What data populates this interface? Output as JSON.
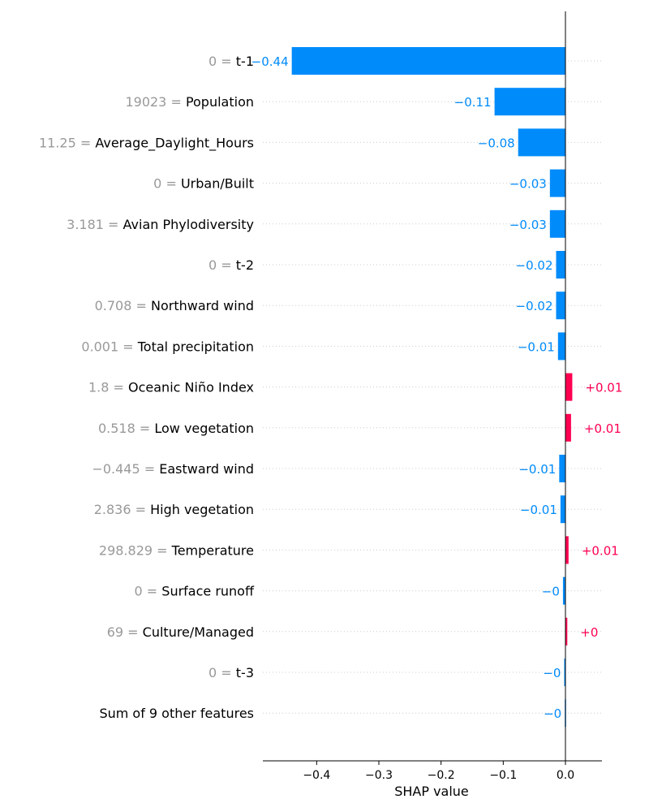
{
  "chart_data": {
    "type": "bar",
    "subtype": "shap-waterfall-bar",
    "xlabel": "SHAP value",
    "xlim": [
      -0.49,
      0.055
    ],
    "xticks": [
      {
        "value": -0.4,
        "label": "−0.4"
      },
      {
        "value": -0.3,
        "label": "−0.3"
      },
      {
        "value": -0.2,
        "label": "−0.2"
      },
      {
        "value": -0.1,
        "label": "−0.1"
      },
      {
        "value": 0.0,
        "label": "0.0"
      }
    ],
    "grid": "horizontal dotted lines per row",
    "colors": {
      "negative": "#008bfb",
      "positive": "#ff0051",
      "feature_value": "#999999",
      "feature_name": "#000000",
      "axis": "#000000",
      "gridline": "#cccccc"
    },
    "features": [
      {
        "value_text": "0",
        "name": "t-1",
        "shap": -0.44,
        "label": "−0.44"
      },
      {
        "value_text": "19023",
        "name": "Population",
        "shap": -0.114,
        "label": "−0.11"
      },
      {
        "value_text": "11.25",
        "name": "Average_Daylight_Hours",
        "shap": -0.076,
        "label": "−0.08"
      },
      {
        "value_text": "0",
        "name": "Urban/Built",
        "shap": -0.025,
        "label": "−0.03"
      },
      {
        "value_text": "3.181",
        "name": "Avian Phylodiversity",
        "shap": -0.025,
        "label": "−0.03"
      },
      {
        "value_text": "0",
        "name": "t-2",
        "shap": -0.015,
        "label": "−0.02"
      },
      {
        "value_text": "0.708",
        "name": "Northward wind",
        "shap": -0.015,
        "label": "−0.02"
      },
      {
        "value_text": "0.001",
        "name": "Total precipitation",
        "shap": -0.012,
        "label": "−0.01"
      },
      {
        "value_text": "1.8",
        "name": "Oceanic Niño Index",
        "shap": 0.011,
        "label": "+0.01"
      },
      {
        "value_text": "0.518",
        "name": "Low vegetation",
        "shap": 0.009,
        "label": "+0.01"
      },
      {
        "value_text": "−0.445",
        "name": "Eastward wind",
        "shap": -0.01,
        "label": "−0.01"
      },
      {
        "value_text": "2.836",
        "name": "High vegetation",
        "shap": -0.008,
        "label": "−0.01"
      },
      {
        "value_text": "298.829",
        "name": "Temperature",
        "shap": 0.005,
        "label": "+0.01"
      },
      {
        "value_text": "0",
        "name": "Surface runoff",
        "shap": -0.004,
        "label": "−0"
      },
      {
        "value_text": "69",
        "name": "Culture/Managed",
        "shap": 0.003,
        "label": "+0"
      },
      {
        "value_text": "0",
        "name": "t-3",
        "shap": -0.002,
        "label": "−0"
      },
      {
        "value_text": "",
        "name": "Sum of 9 other features",
        "shap": -0.001,
        "label": "−0"
      }
    ]
  }
}
